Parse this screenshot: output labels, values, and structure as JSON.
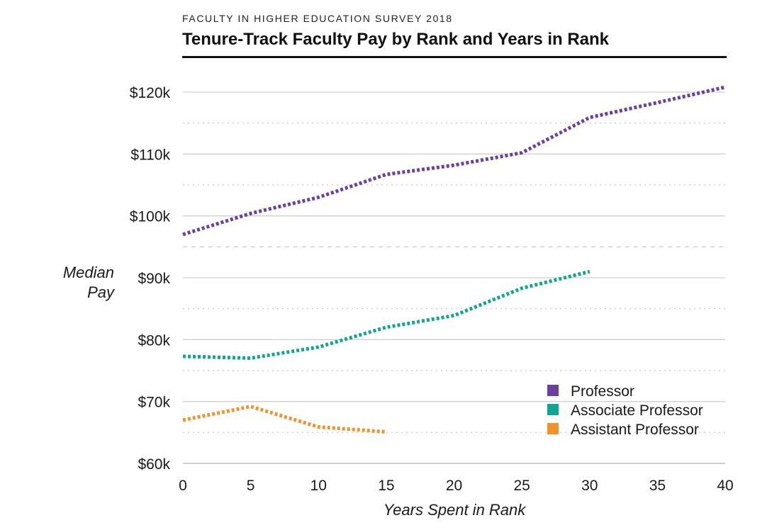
{
  "header": {
    "kicker": "FACULTY IN HIGHER EDUCATION SURVEY 2018",
    "title": "Tenure-Track Faculty Pay by Rank and Years in Rank"
  },
  "chart_data": {
    "type": "line",
    "title": "Tenure-Track Faculty Pay by Rank and Years in Rank",
    "xlabel": "Years Spent in Rank",
    "ylabel_lines": [
      "Median",
      "Pay"
    ],
    "xlim": [
      0,
      40
    ],
    "ylim": [
      60000,
      120000
    ],
    "x_ticks": [
      0,
      5,
      10,
      15,
      20,
      25,
      30,
      35,
      40
    ],
    "x_tick_labels": [
      "0",
      "5",
      "10",
      "15",
      "20",
      "25",
      "30",
      "35",
      "40"
    ],
    "y_ticks": [
      60000,
      70000,
      80000,
      90000,
      100000,
      110000,
      120000
    ],
    "y_tick_labels": [
      "$60k",
      "$70k",
      "$80k",
      "$90k",
      "$100k",
      "$110k",
      "$120k"
    ],
    "grid": true,
    "legend_position": "bottom-right",
    "series": [
      {
        "name": "Professor",
        "color": "#6b3fa0",
        "points": [
          [
            0,
            97000
          ],
          [
            5,
            100400
          ],
          [
            10,
            103000
          ],
          [
            15,
            106700
          ],
          [
            20,
            108200
          ],
          [
            25,
            110200
          ],
          [
            30,
            115900
          ],
          [
            35,
            118300
          ],
          [
            40,
            120800
          ]
        ]
      },
      {
        "name": "Associate Professor",
        "color": "#13a593",
        "points": [
          [
            0,
            77300
          ],
          [
            5,
            77000
          ],
          [
            10,
            78800
          ],
          [
            15,
            82000
          ],
          [
            20,
            83900
          ],
          [
            25,
            88300
          ],
          [
            30,
            91000
          ]
        ]
      },
      {
        "name": "Assistant Professor",
        "color": "#f2922b",
        "points": [
          [
            0,
            67000
          ],
          [
            5,
            69200
          ],
          [
            10,
            65900
          ],
          [
            15,
            65100
          ]
        ]
      }
    ]
  }
}
